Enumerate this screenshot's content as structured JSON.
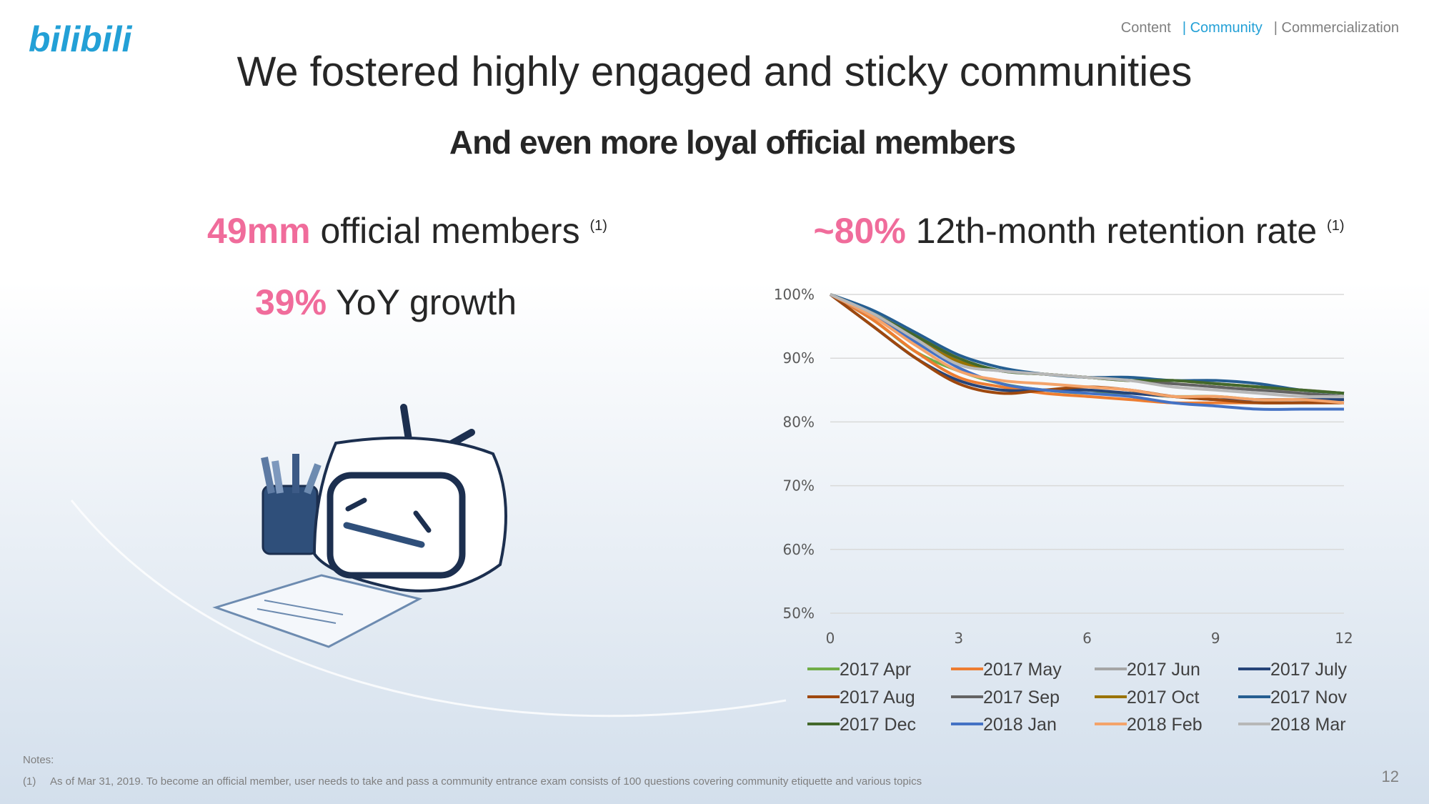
{
  "header": {
    "logo": "bilibili",
    "nav": [
      "Content",
      "| Community",
      "| Commercialization"
    ]
  },
  "title": "We fostered highly engaged and sticky communities",
  "subtitle": "And even more loyal official members",
  "left": {
    "members_value": "49mm",
    "members_text": "official members",
    "members_note": "(1)",
    "growth_value": "39%",
    "growth_text": "YoY growth"
  },
  "right": {
    "retention_value": "~80%",
    "retention_text": "12th-month retention rate",
    "retention_note": "(1)"
  },
  "chart_data": {
    "type": "line",
    "x": [
      0,
      1,
      2,
      3,
      4,
      5,
      6,
      7,
      8,
      9,
      10,
      11,
      12
    ],
    "xlim": [
      0,
      12
    ],
    "xticks": [
      0,
      3,
      6,
      9,
      12
    ],
    "ylim": [
      50,
      100
    ],
    "yticks": [
      {
        "value": 50,
        "label": "50%"
      },
      {
        "value": 60,
        "label": "60%"
      },
      {
        "value": 70,
        "label": "70%"
      },
      {
        "value": 80,
        "label": "80%"
      },
      {
        "value": 90,
        "label": "90%"
      },
      {
        "value": 100,
        "label": "100%"
      }
    ],
    "grid": true,
    "legend": "bottom",
    "series": [
      {
        "name": "2017 Apr",
        "color": "#70ad47",
        "values": [
          100,
          96,
          91,
          88,
          86,
          85,
          84.5,
          84.5,
          84,
          84,
          83.5,
          83.5,
          83
        ]
      },
      {
        "name": "2017 May",
        "color": "#ed7d31",
        "values": [
          100,
          96,
          91,
          87,
          85.5,
          84.5,
          84,
          83.5,
          83,
          83,
          83,
          83,
          83
        ]
      },
      {
        "name": "2017 Jun",
        "color": "#a5a5a5",
        "values": [
          100,
          97,
          93,
          89,
          88,
          87.5,
          87,
          86.5,
          86,
          85.5,
          85,
          85,
          84.5
        ]
      },
      {
        "name": "2017 July",
        "color": "#264478",
        "values": [
          100,
          95,
          90,
          86.5,
          85,
          85,
          85,
          84.5,
          84,
          83.5,
          83.5,
          83.5,
          83.5
        ]
      },
      {
        "name": "2017 Aug",
        "color": "#9e480e",
        "values": [
          100,
          95,
          90,
          86,
          84.5,
          85,
          85.5,
          85,
          84,
          83.5,
          83,
          83,
          83
        ]
      },
      {
        "name": "2017 Sep",
        "color": "#636363",
        "values": [
          100,
          97,
          93.5,
          89.5,
          88,
          87.5,
          87,
          86.5,
          86,
          85.5,
          85,
          84.5,
          84
        ]
      },
      {
        "name": "2017 Oct",
        "color": "#997300",
        "values": [
          100,
          97,
          93,
          89.5,
          88,
          87.5,
          87,
          86.5,
          86.5,
          86,
          85.5,
          85,
          84.5
        ]
      },
      {
        "name": "2017 Nov",
        "color": "#255e91",
        "values": [
          100,
          97.5,
          94,
          90.5,
          88.5,
          87.5,
          87,
          87,
          86.5,
          86.5,
          86,
          85,
          84.5
        ]
      },
      {
        "name": "2017 Dec",
        "color": "#43682b",
        "values": [
          100,
          97,
          93.5,
          90,
          88,
          87.5,
          87,
          86.5,
          86.5,
          86,
          85.5,
          85,
          84.5
        ]
      },
      {
        "name": "2018 Jan",
        "color": "#4472c4",
        "values": [
          100,
          96.5,
          92.5,
          88.5,
          86,
          85,
          84.5,
          84,
          83,
          82.5,
          82,
          82,
          82
        ]
      },
      {
        "name": "2018 Feb",
        "color": "#f4a36a",
        "values": [
          100,
          96.5,
          92,
          88,
          86.5,
          86,
          85.5,
          85,
          84,
          84,
          83.5,
          83.5,
          83
        ]
      },
      {
        "name": "2018 Mar",
        "color": "#b7b7b7",
        "values": [
          100,
          97,
          93,
          89,
          88,
          87.5,
          87,
          86.5,
          85.5,
          85,
          84.5,
          84,
          84
        ]
      }
    ]
  },
  "notes": {
    "label": "Notes:",
    "marker": "(1)",
    "text": "As of Mar 31, 2019. To become an official member, user needs to take and pass a community entrance exam consists of 100 questions covering community etiquette and various topics"
  },
  "page_number": "12"
}
